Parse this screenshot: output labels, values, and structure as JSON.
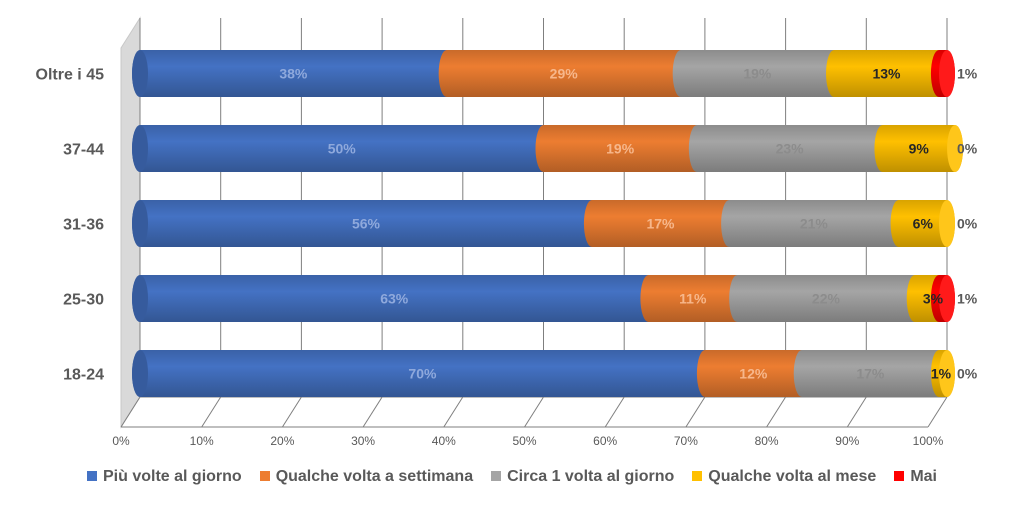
{
  "chart_data": {
    "type": "bar",
    "orientation": "horizontal",
    "stacked": "percent",
    "categories": [
      "Oltre i 45",
      "37-44",
      "31-36",
      "25-30",
      "18-24"
    ],
    "series": [
      {
        "name": "Più volte al giorno",
        "color": "#4472C4",
        "values": [
          38,
          50,
          56,
          63,
          70
        ],
        "labels": [
          "38%",
          "50%",
          "56%",
          "63%",
          "70%"
        ]
      },
      {
        "name": "Qualche volta a settimana",
        "color": "#ED7D31",
        "values": [
          29,
          19,
          17,
          11,
          12
        ],
        "labels": [
          "29%",
          "19%",
          "17%",
          "11%",
          "12%"
        ]
      },
      {
        "name": "Circa 1 volta al giorno",
        "color": "#A5A5A5",
        "values": [
          19,
          23,
          21,
          22,
          17
        ],
        "labels": [
          "19%",
          "23%",
          "21%",
          "22%",
          "17%"
        ]
      },
      {
        "name": "Qualche volta al mese",
        "color": "#FFC000",
        "values": [
          13,
          9,
          6,
          3,
          1
        ],
        "labels": [
          "13%",
          "9%",
          "6%",
          "3%",
          "1%"
        ]
      },
      {
        "name": "Mai",
        "color": "#FF0000",
        "values": [
          1,
          0,
          0,
          1,
          0
        ],
        "labels": [
          "1%",
          "0%",
          "0%",
          "1%",
          "0%"
        ]
      }
    ],
    "xlim": [
      0,
      100
    ],
    "ticks": [
      "0%",
      "10%",
      "20%",
      "30%",
      "40%",
      "50%",
      "60%",
      "70%",
      "80%",
      "90%",
      "100%"
    ],
    "grid": true,
    "legend": "bottom"
  }
}
